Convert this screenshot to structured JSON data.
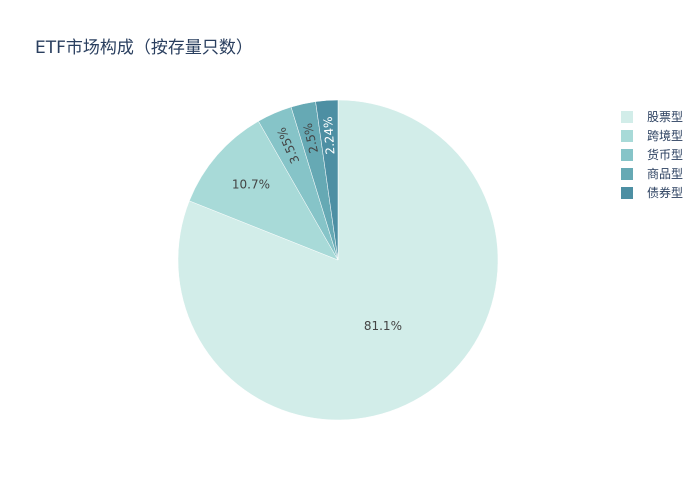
{
  "chart_data": {
    "type": "pie",
    "title": "ETF市场构成（按存量只数）",
    "categories": [
      "股票型",
      "跨境型",
      "货币型",
      "商品型",
      "债券型"
    ],
    "values": [
      81.1,
      10.7,
      3.55,
      2.5,
      2.24
    ],
    "value_labels": [
      "81.1%",
      "10.7%",
      "3.55%",
      "2.5%",
      "2.24%"
    ],
    "colors": [
      "#d2ede9",
      "#a8dad8",
      "#86c4c8",
      "#66a9b4",
      "#4d8fa3"
    ],
    "direction": "clockwise",
    "legend": "top-right"
  }
}
